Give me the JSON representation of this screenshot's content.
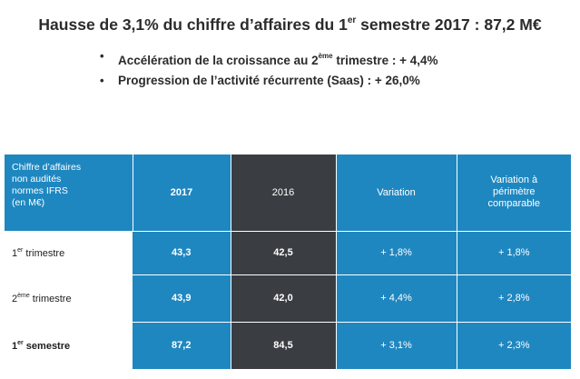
{
  "title": {
    "main_before": "Hausse de 3,1% du chiffre d’affaires du 1",
    "main_sup": "er",
    "main_after": " semestre 2017 : 87,2 M€"
  },
  "bullets": [
    {
      "before": "Accélération de la croissance au 2",
      "sup": "ème",
      "after": " trimestre : + 4,4%"
    },
    {
      "before": "Progression de l’activité récurrente (Saas) : + 26,0%",
      "sup": "",
      "after": ""
    }
  ],
  "table": {
    "header": {
      "label_lines": [
        "Chiffre d’affaires",
        "non audités",
        "normes IFRS",
        "(en M€)"
      ],
      "col_2017": "2017",
      "col_2016": "2016",
      "col_variation": "Variation",
      "col_variation_perimetre_lines": [
        "Variation à",
        "périmètre",
        "comparable"
      ]
    },
    "rows": [
      {
        "label_num": "1",
        "label_sup": "er",
        "label_text": " trimestre",
        "v2017": "43,3",
        "v2016": "42,5",
        "variation": "+ 1,8%",
        "variation_pc": "+ 1,8%"
      },
      {
        "label_num": "2",
        "label_sup": "ème",
        "label_text": " trimestre",
        "v2017": "43,9",
        "v2016": "42,0",
        "variation": "+ 4,4%",
        "variation_pc": "+ 2,8%"
      },
      {
        "label_num": "1",
        "label_sup": "er",
        "label_text": " semestre",
        "v2017": "87,2",
        "v2016": "84,5",
        "variation": "+ 3,1%",
        "variation_pc": "+ 2,3%"
      }
    ]
  },
  "colors": {
    "blue": "#1f87c0",
    "dark": "#3a3e42",
    "text": "#1d1d1d"
  }
}
